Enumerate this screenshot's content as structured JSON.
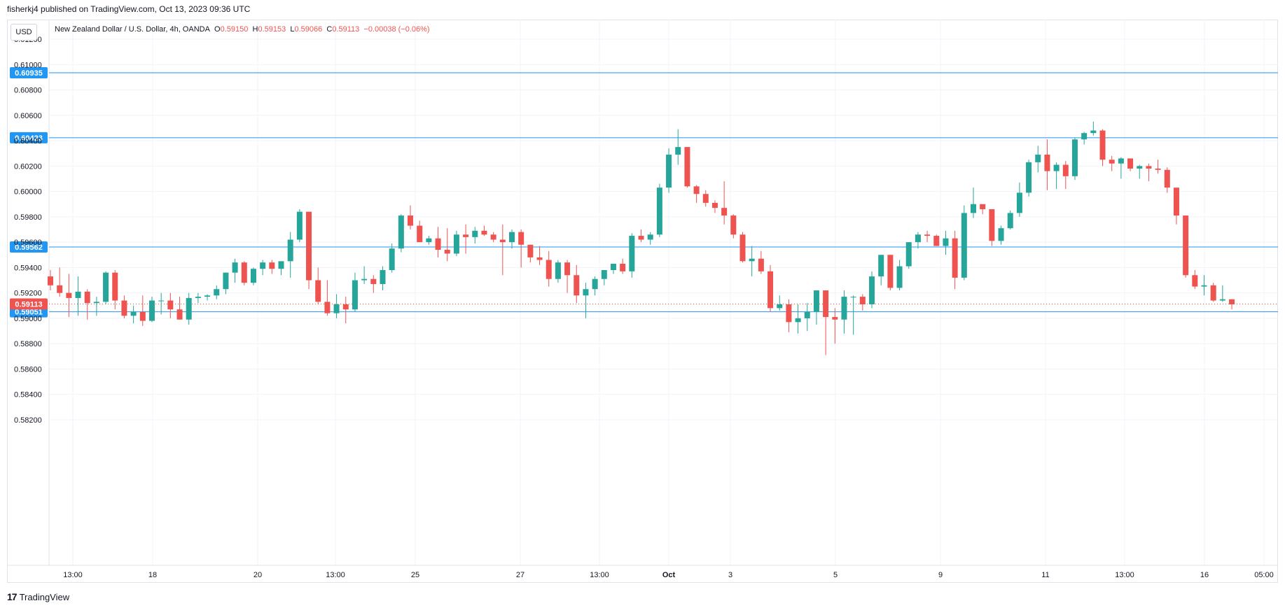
{
  "header": {
    "published_by": "fisherkj4 published on TradingView.com, Oct 13, 2023 09:36 UTC"
  },
  "currency_button": "USD",
  "legend": {
    "symbol": "New Zealand Dollar / U.S. Dollar, 4h, OANDA",
    "o_label": "O",
    "o_value": "0.59150",
    "h_label": "H",
    "h_value": "0.59153",
    "l_label": "L",
    "l_value": "0.59066",
    "c_label": "C",
    "c_value": "0.59113",
    "change": "−0.00038 (−0.06%)"
  },
  "footer": {
    "brand": "TradingView"
  },
  "colors": {
    "up": "#26a69a",
    "down": "#ef5350",
    "hline": "#2196f3",
    "grid": "#f0f3fa"
  },
  "chart_data": {
    "type": "candlestick",
    "title": "",
    "y_axis": {
      "ticks": [
        "0.61200",
        "0.61000",
        "0.60800",
        "0.60600",
        "0.60400",
        "0.60200",
        "0.60000",
        "0.59800",
        "0.59600",
        "0.59400",
        "0.59200",
        "0.59000",
        "0.58800",
        "0.58600",
        "0.58400",
        "0.58200"
      ],
      "range": [
        0.5812,
        0.6122
      ]
    },
    "x_axis": {
      "labels": [
        "13:00",
        "18",
        "20",
        "13:00",
        "25",
        "27",
        "13:00",
        "Oct",
        "3",
        "5",
        "9",
        "11",
        "13:00",
        "16",
        "05:00"
      ]
    },
    "horizontal_lines": [
      "0.60935",
      "0.60423",
      "0.59562",
      "0.59051"
    ],
    "last_price": "0.59113",
    "candles": [
      [
        0.5933,
        0.5938,
        0.5922,
        0.5926
      ],
      [
        0.5926,
        0.594,
        0.5917,
        0.592
      ],
      [
        0.592,
        0.5935,
        0.5901,
        0.5916
      ],
      [
        0.5916,
        0.5933,
        0.5902,
        0.5921
      ],
      [
        0.5921,
        0.5923,
        0.5899,
        0.5912
      ],
      [
        0.5912,
        0.5917,
        0.5902,
        0.5913
      ],
      [
        0.5913,
        0.5937,
        0.5911,
        0.5936
      ],
      [
        0.5936,
        0.5938,
        0.5907,
        0.5914
      ],
      [
        0.5914,
        0.5918,
        0.59,
        0.5902
      ],
      [
        0.5902,
        0.591,
        0.5896,
        0.5905
      ],
      [
        0.5905,
        0.5918,
        0.5894,
        0.5898
      ],
      [
        0.5898,
        0.5917,
        0.5897,
        0.5914
      ],
      [
        0.5914,
        0.592,
        0.5903,
        0.5914
      ],
      [
        0.5914,
        0.592,
        0.59,
        0.5907
      ],
      [
        0.5907,
        0.5917,
        0.5899,
        0.5899
      ],
      [
        0.5899,
        0.592,
        0.5895,
        0.5916
      ],
      [
        0.5916,
        0.592,
        0.5912,
        0.5917
      ],
      [
        0.5917,
        0.5919,
        0.5914,
        0.5918
      ],
      [
        0.5918,
        0.5926,
        0.5915,
        0.5923
      ],
      [
        0.5923,
        0.5936,
        0.5919,
        0.5936
      ],
      [
        0.5936,
        0.5947,
        0.5928,
        0.5944
      ],
      [
        0.5944,
        0.5945,
        0.5926,
        0.5928
      ],
      [
        0.5928,
        0.594,
        0.5926,
        0.5939
      ],
      [
        0.5939,
        0.5946,
        0.5934,
        0.5944
      ],
      [
        0.5944,
        0.5946,
        0.5935,
        0.5939
      ],
      [
        0.5939,
        0.5942,
        0.5934,
        0.5945
      ],
      [
        0.5945,
        0.5968,
        0.5932,
        0.5962
      ],
      [
        0.5962,
        0.5986,
        0.596,
        0.5984
      ],
      [
        0.5984,
        0.5984,
        0.5923,
        0.593
      ],
      [
        0.593,
        0.594,
        0.5911,
        0.5913
      ],
      [
        0.5913,
        0.593,
        0.5902,
        0.5904
      ],
      [
        0.5904,
        0.5919,
        0.59,
        0.5911
      ],
      [
        0.5911,
        0.5917,
        0.5896,
        0.5907
      ],
      [
        0.5907,
        0.5936,
        0.5905,
        0.593
      ],
      [
        0.593,
        0.5941,
        0.5927,
        0.5931
      ],
      [
        0.5931,
        0.5934,
        0.592,
        0.5927
      ],
      [
        0.5927,
        0.5941,
        0.5922,
        0.5938
      ],
      [
        0.5938,
        0.5959,
        0.5936,
        0.5955
      ],
      [
        0.5955,
        0.5982,
        0.5952,
        0.5981
      ],
      [
        0.5981,
        0.5989,
        0.597,
        0.5973
      ],
      [
        0.5973,
        0.5977,
        0.596,
        0.596
      ],
      [
        0.596,
        0.5965,
        0.5958,
        0.5963
      ],
      [
        0.5963,
        0.5972,
        0.5948,
        0.5954
      ],
      [
        0.5954,
        0.5971,
        0.5945,
        0.5951
      ],
      [
        0.5951,
        0.5969,
        0.5949,
        0.5966
      ],
      [
        0.5966,
        0.5974,
        0.5951,
        0.5964
      ],
      [
        0.5964,
        0.5972,
        0.5959,
        0.5969
      ],
      [
        0.5969,
        0.5973,
        0.5965,
        0.5966
      ],
      [
        0.5966,
        0.5968,
        0.596,
        0.5962
      ],
      [
        0.5962,
        0.5974,
        0.5934,
        0.596
      ],
      [
        0.596,
        0.597,
        0.5955,
        0.5968
      ],
      [
        0.5968,
        0.597,
        0.594,
        0.5958
      ],
      [
        0.5958,
        0.5958,
        0.5944,
        0.5948
      ],
      [
        0.5948,
        0.5957,
        0.5942,
        0.5946
      ],
      [
        0.5946,
        0.5953,
        0.5925,
        0.5931
      ],
      [
        0.5931,
        0.5946,
        0.5928,
        0.5944
      ],
      [
        0.5944,
        0.5946,
        0.592,
        0.5934
      ],
      [
        0.5934,
        0.5942,
        0.5912,
        0.5918
      ],
      [
        0.5918,
        0.5928,
        0.59,
        0.5923
      ],
      [
        0.5923,
        0.5933,
        0.5918,
        0.5931
      ],
      [
        0.5931,
        0.5937,
        0.5926,
        0.5938
      ],
      [
        0.5938,
        0.5943,
        0.5935,
        0.5943
      ],
      [
        0.5943,
        0.5947,
        0.5935,
        0.5937
      ],
      [
        0.5937,
        0.5967,
        0.5932,
        0.5965
      ],
      [
        0.5965,
        0.597,
        0.596,
        0.5962
      ],
      [
        0.5962,
        0.5968,
        0.5958,
        0.5966
      ],
      [
        0.5966,
        0.6006,
        0.5964,
        0.6003
      ],
      [
        0.6003,
        0.6034,
        0.5999,
        0.6029
      ],
      [
        0.6029,
        0.6049,
        0.6021,
        0.6035
      ],
      [
        0.6035,
        0.6035,
        0.6003,
        0.6004
      ],
      [
        0.6004,
        0.6005,
        0.5991,
        0.5998
      ],
      [
        0.5998,
        0.6001,
        0.5988,
        0.5991
      ],
      [
        0.5991,
        0.5993,
        0.5983,
        0.5987
      ],
      [
        0.5987,
        0.6008,
        0.5974,
        0.5981
      ],
      [
        0.5981,
        0.5982,
        0.5963,
        0.5966
      ],
      [
        0.5966,
        0.5968,
        0.5944,
        0.5945
      ],
      [
        0.5945,
        0.5957,
        0.5933,
        0.5947
      ],
      [
        0.5947,
        0.5953,
        0.5935,
        0.5937
      ],
      [
        0.5937,
        0.5942,
        0.5905,
        0.5908
      ],
      [
        0.5908,
        0.5918,
        0.5906,
        0.5911
      ],
      [
        0.5911,
        0.5915,
        0.5889,
        0.5897
      ],
      [
        0.5897,
        0.5911,
        0.5888,
        0.59
      ],
      [
        0.59,
        0.5912,
        0.589,
        0.5905
      ],
      [
        0.5905,
        0.5922,
        0.5895,
        0.5922
      ],
      [
        0.5922,
        0.5922,
        0.5871,
        0.5901
      ],
      [
        0.5901,
        0.5908,
        0.588,
        0.5899
      ],
      [
        0.5899,
        0.5922,
        0.5888,
        0.5917
      ],
      [
        0.5917,
        0.5918,
        0.5887,
        0.5917
      ],
      [
        0.5917,
        0.5919,
        0.5906,
        0.5911
      ],
      [
        0.5911,
        0.5937,
        0.5908,
        0.5933
      ],
      [
        0.5933,
        0.595,
        0.5926,
        0.595
      ],
      [
        0.595,
        0.595,
        0.5922,
        0.5924
      ],
      [
        0.5924,
        0.5946,
        0.5922,
        0.5941
      ],
      [
        0.5941,
        0.5959,
        0.5939,
        0.596
      ],
      [
        0.596,
        0.5968,
        0.5955,
        0.5966
      ],
      [
        0.5966,
        0.5969,
        0.596,
        0.5965
      ],
      [
        0.5965,
        0.5966,
        0.5957,
        0.5957
      ],
      [
        0.5957,
        0.5969,
        0.595,
        0.5963
      ],
      [
        0.5963,
        0.5969,
        0.5923,
        0.5932
      ],
      [
        0.5932,
        0.5989,
        0.593,
        0.5983
      ],
      [
        0.5983,
        0.6003,
        0.5979,
        0.599
      ],
      [
        0.599,
        0.5988,
        0.5982,
        0.5986
      ],
      [
        0.5986,
        0.5986,
        0.5957,
        0.5961
      ],
      [
        0.5961,
        0.5973,
        0.5958,
        0.5971
      ],
      [
        0.5971,
        0.5985,
        0.597,
        0.5983
      ],
      [
        0.5983,
        0.6007,
        0.598,
        0.5999
      ],
      [
        0.5999,
        0.6025,
        0.5996,
        0.6023
      ],
      [
        0.6023,
        0.6036,
        0.6015,
        0.6029
      ],
      [
        0.6029,
        0.6041,
        0.6001,
        0.6016
      ],
      [
        0.6016,
        0.6023,
        0.6002,
        0.6021
      ],
      [
        0.6021,
        0.6024,
        0.6002,
        0.6012
      ],
      [
        0.6012,
        0.6042,
        0.6009,
        0.6041
      ],
      [
        0.6041,
        0.6047,
        0.6037,
        0.6046
      ],
      [
        0.6046,
        0.6055,
        0.6044,
        0.6048
      ],
      [
        0.6048,
        0.6049,
        0.602,
        0.6025
      ],
      [
        0.6025,
        0.6028,
        0.6016,
        0.6022
      ],
      [
        0.6022,
        0.6027,
        0.601,
        0.6026
      ],
      [
        0.6026,
        0.6026,
        0.6016,
        0.6018
      ],
      [
        0.6018,
        0.6021,
        0.601,
        0.602
      ],
      [
        0.602,
        0.6022,
        0.6008,
        0.6018
      ],
      [
        0.6018,
        0.6025,
        0.6014,
        0.6017
      ],
      [
        0.6017,
        0.6019,
        0.5999,
        0.6003
      ],
      [
        0.6003,
        0.6003,
        0.5974,
        0.5981
      ],
      [
        0.5981,
        0.5981,
        0.5932,
        0.5934
      ],
      [
        0.5934,
        0.5938,
        0.5923,
        0.5925
      ],
      [
        0.5925,
        0.5934,
        0.5918,
        0.5926
      ],
      [
        0.5926,
        0.5928,
        0.5913,
        0.5914
      ],
      [
        0.5914,
        0.5926,
        0.5913,
        0.5915
      ],
      [
        0.5915,
        0.5915,
        0.5907,
        0.5911
      ]
    ]
  }
}
